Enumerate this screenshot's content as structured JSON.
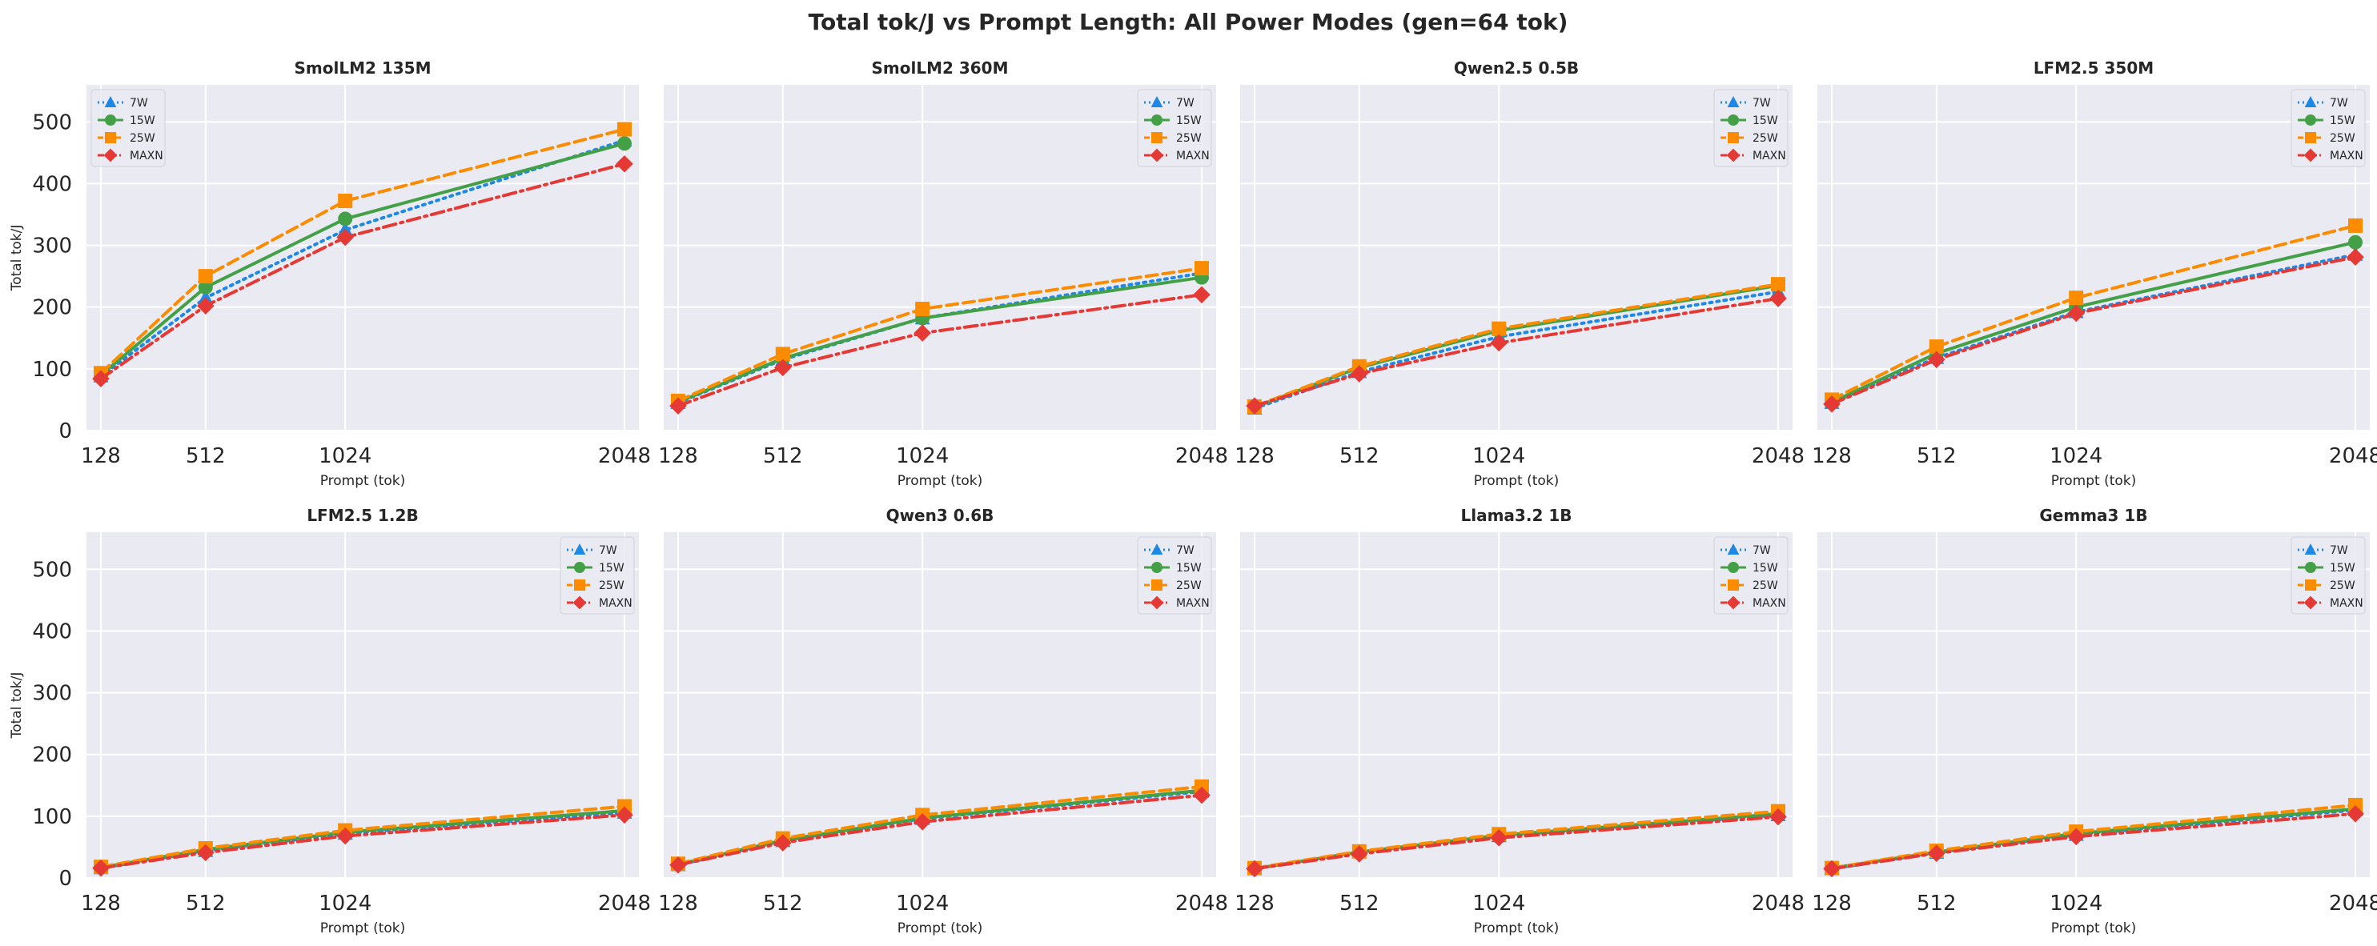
{
  "figure": {
    "title": "Total tok/J vs Prompt Length: All Power Modes (gen=64 tok)"
  },
  "chart_data": {
    "type": "line",
    "x": [
      128,
      512,
      1024,
      2048
    ],
    "x_tick_labels": [
      "128",
      "512",
      "1024",
      "2048"
    ],
    "ylim": [
      0,
      560
    ],
    "y_ticks": [
      0,
      100,
      200,
      300,
      400,
      500
    ],
    "xlabel": "Prompt (tok)",
    "ylabel": "Total tok/J",
    "grid": true,
    "series_styles": [
      {
        "name": "7W",
        "color": "#1e88e5",
        "marker": "triangle",
        "dash": "dotted"
      },
      {
        "name": "15W",
        "color": "#43a047",
        "marker": "circle",
        "dash": "solid"
      },
      {
        "name": "25W",
        "color": "#fb8c00",
        "marker": "square",
        "dash": "dashed"
      },
      {
        "name": "MAXN",
        "color": "#e53935",
        "marker": "diamond",
        "dash": "dashdot"
      }
    ],
    "panels": [
      {
        "title": "SmolLM2 135M",
        "legend_loc": "upper-left",
        "show_ylabel": true,
        "show_xlabel": true,
        "series": [
          {
            "name": "7W",
            "values": [
              88,
              215,
              325,
              470
            ]
          },
          {
            "name": "15W",
            "values": [
              90,
              232,
              343,
              465
            ]
          },
          {
            "name": "25W",
            "values": [
              93,
              250,
              372,
              488
            ]
          },
          {
            "name": "MAXN",
            "values": [
              84,
              202,
              313,
              432
            ]
          }
        ]
      },
      {
        "title": "SmolLM2 360M",
        "legend_loc": "upper-right",
        "show_ylabel": false,
        "show_xlabel": true,
        "series": [
          {
            "name": "7W",
            "values": [
              45,
              115,
              182,
              255
            ]
          },
          {
            "name": "15W",
            "values": [
              46,
              117,
              182,
              248
            ]
          },
          {
            "name": "25W",
            "values": [
              48,
              124,
              197,
              263
            ]
          },
          {
            "name": "MAXN",
            "values": [
              40,
              102,
              158,
              220
            ]
          }
        ]
      },
      {
        "title": "Qwen2.5 0.5B",
        "legend_loc": "upper-right",
        "show_ylabel": false,
        "show_xlabel": true,
        "series": [
          {
            "name": "7W",
            "values": [
              36,
              95,
              152,
              225
            ]
          },
          {
            "name": "15W",
            "values": [
              38,
              102,
              162,
              235
            ]
          },
          {
            "name": "25W",
            "values": [
              39,
              104,
              165,
              237
            ]
          },
          {
            "name": "MAXN",
            "values": [
              40,
              92,
              142,
              214
            ]
          }
        ]
      },
      {
        "title": "LFM2.5 350M",
        "legend_loc": "upper-right",
        "show_ylabel": false,
        "show_xlabel": true,
        "series": [
          {
            "name": "7W",
            "values": [
              45,
              118,
              192,
              285
            ]
          },
          {
            "name": "15W",
            "values": [
              46,
              125,
              200,
              305
            ]
          },
          {
            "name": "25W",
            "values": [
              50,
              136,
              215,
              332
            ]
          },
          {
            "name": "MAXN",
            "values": [
              43,
              115,
              190,
              281
            ]
          }
        ]
      },
      {
        "title": "LFM2.5 1.2B",
        "legend_loc": "upper-right",
        "show_ylabel": true,
        "show_xlabel": true,
        "series": [
          {
            "name": "7W",
            "values": [
              16,
              44,
              72,
              106
            ]
          },
          {
            "name": "15W",
            "values": [
              17,
              46,
              74,
              109
            ]
          },
          {
            "name": "25W",
            "values": [
              18,
              48,
              77,
              116
            ]
          },
          {
            "name": "MAXN",
            "values": [
              16,
              41,
              68,
              102
            ]
          }
        ]
      },
      {
        "title": "Qwen3 0.6B",
        "legend_loc": "upper-right",
        "show_ylabel": false,
        "show_xlabel": true,
        "series": [
          {
            "name": "7W",
            "values": [
              21,
              60,
              96,
              140
            ]
          },
          {
            "name": "15W",
            "values": [
              22,
              61,
              97,
              142
            ]
          },
          {
            "name": "25W",
            "values": [
              23,
              64,
              102,
              148
            ]
          },
          {
            "name": "MAXN",
            "values": [
              21,
              57,
              91,
              134
            ]
          }
        ]
      },
      {
        "title": "Llama3.2 1B",
        "legend_loc": "upper-right",
        "show_ylabel": false,
        "show_xlabel": true,
        "series": [
          {
            "name": "7W",
            "values": [
              15,
              42,
              68,
              102
            ]
          },
          {
            "name": "15W",
            "values": [
              15,
              42,
              69,
              104
            ]
          },
          {
            "name": "25W",
            "values": [
              16,
              43,
              71,
              108
            ]
          },
          {
            "name": "MAXN",
            "values": [
              15,
              39,
              65,
              99
            ]
          }
        ]
      },
      {
        "title": "Gemma3 1B",
        "legend_loc": "upper-right",
        "show_ylabel": false,
        "show_xlabel": true,
        "series": [
          {
            "name": "7W",
            "values": [
              15,
              41,
              70,
              110
            ]
          },
          {
            "name": "15W",
            "values": [
              16,
              42,
              72,
              112
            ]
          },
          {
            "name": "25W",
            "values": [
              16,
              44,
              75,
              118
            ]
          },
          {
            "name": "MAXN",
            "values": [
              15,
              40,
              67,
              104
            ]
          }
        ]
      }
    ]
  }
}
